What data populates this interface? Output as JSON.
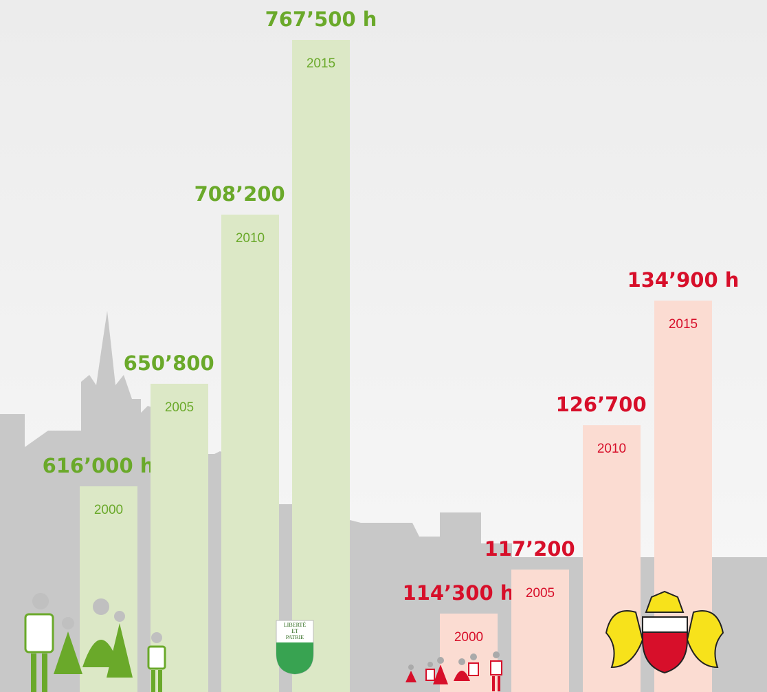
{
  "chart_data": [
    {
      "type": "bar",
      "categories": [
        "2000",
        "2005",
        "2010",
        "2015"
      ],
      "values": [
        616000,
        650800,
        708200,
        767500
      ],
      "value_labels": [
        "616’000 h",
        "650’800 h",
        "708’200 h",
        "767’500 h"
      ],
      "color": "#6aa92a",
      "bar_color": "#dce8c6"
    },
    {
      "type": "bar",
      "categories": [
        "2000",
        "2005",
        "2010",
        "2015"
      ],
      "values": [
        114300,
        117200,
        126700,
        134900
      ],
      "value_labels": [
        "114’300 h",
        "117’200 h",
        "126’700 h",
        "134’900 h"
      ],
      "color": "#d70f2a",
      "bar_color": "#fbdcd2"
    }
  ],
  "emblem": {
    "lines": [
      "LIBERTÉ",
      "ET",
      "PATRIE"
    ]
  }
}
